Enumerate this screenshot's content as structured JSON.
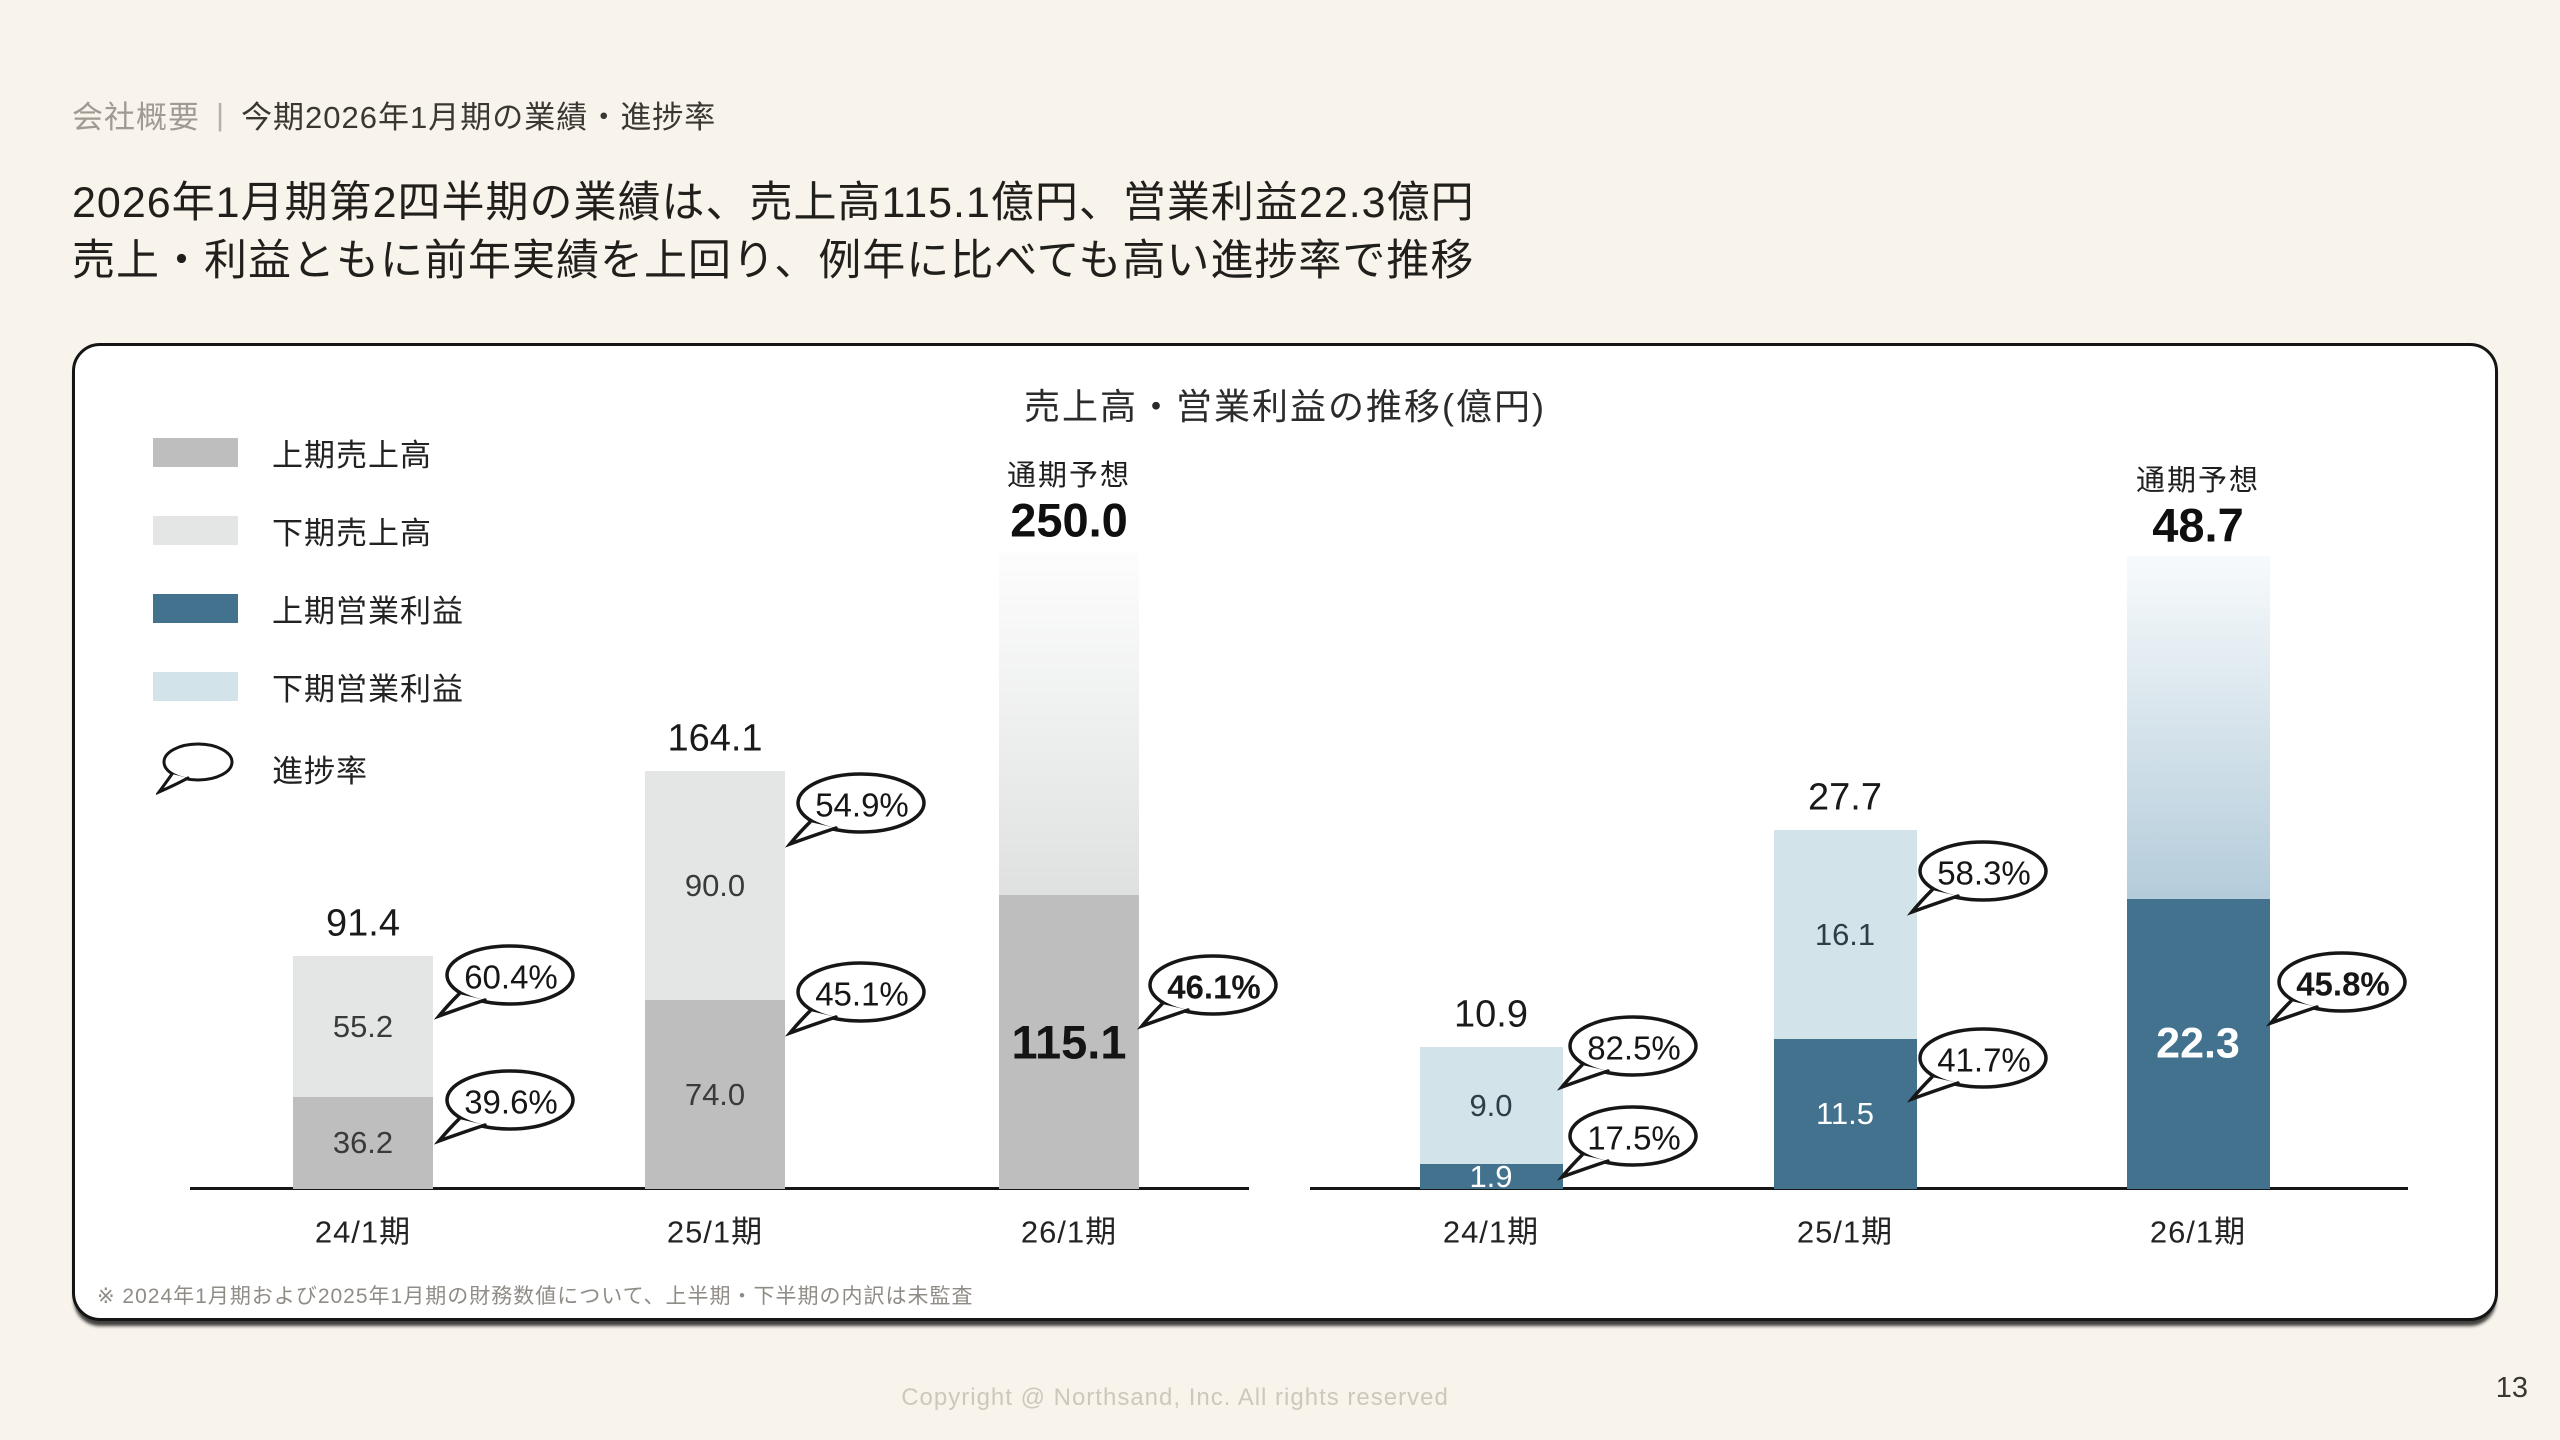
{
  "page": {
    "eyebrow": "会社概要",
    "eyebrow_separator": "|",
    "section_title": "今期2026年1月期の業績・進捗率",
    "headline_line1": "2026年1月期第2四半期の業績は、売上高115.1億円、営業利益22.3億円",
    "headline_line2": "売上・利益ともに前年実績を上回り、例年に比べても高い進捗率で推移",
    "copyright": "Copyright @ Northsand, Inc. All rights reserved",
    "page_number": "13"
  },
  "panel": {
    "chart_title": "売上高・営業利益の推移(億円)",
    "footnote": "※ 2024年1月期および2025年1月期の財務数値について、上半期・下半期の内訳は未監査",
    "legend": [
      {
        "key": "h1_revenue",
        "label": "上期売上高"
      },
      {
        "key": "h2_revenue",
        "label": "下期売上高"
      },
      {
        "key": "h1_profit",
        "label": "上期営業利益"
      },
      {
        "key": "h2_profit",
        "label": "下期営業利益"
      },
      {
        "key": "progress",
        "label": "進捗率"
      }
    ]
  },
  "colors": {
    "h1_revenue": "#bebebe",
    "h2_revenue": "#e4e5e5",
    "h1_profit": "#42728d",
    "h2_profit": "#d3e3ea",
    "forecast_revenue_top": "#fdfdfd",
    "forecast_revenue_bottom": "#dfe1e1",
    "forecast_profit_top": "#f7fafc",
    "forecast_profit_bottom": "#b4ccda",
    "background": "#f8f3eb",
    "panel_border": "#151515"
  },
  "chart_data": [
    {
      "name": "売上高",
      "type": "bar",
      "stacked": true,
      "unit": "億円",
      "categories": [
        "24/1期",
        "25/1期",
        "26/1期"
      ],
      "series": [
        {
          "name": "上期売上高",
          "values": [
            36.2,
            74.0,
            115.1
          ]
        },
        {
          "name": "下期売上高",
          "values": [
            55.2,
            90.0,
            null
          ]
        }
      ],
      "totals": [
        91.4,
        164.1,
        null
      ],
      "forecast": {
        "category": "26/1期",
        "label": "通期予想",
        "value": 250.0
      },
      "progress": [
        [
          "39.6%",
          "60.4%"
        ],
        [
          "45.1%",
          "54.9%"
        ],
        [
          "46.1%"
        ]
      ]
    },
    {
      "name": "営業利益",
      "type": "bar",
      "stacked": true,
      "unit": "億円",
      "categories": [
        "24/1期",
        "25/1期",
        "26/1期"
      ],
      "series": [
        {
          "name": "上期営業利益",
          "values": [
            1.9,
            11.5,
            22.3
          ]
        },
        {
          "name": "下期営業利益",
          "values": [
            9.0,
            16.1,
            null
          ]
        }
      ],
      "totals": [
        10.9,
        27.7,
        null
      ],
      "forecast": {
        "category": "26/1期",
        "label": "通期予想",
        "value": 48.7
      },
      "progress": [
        [
          "17.5%",
          "82.5%"
        ],
        [
          "41.7%",
          "58.3%"
        ],
        [
          "45.8%"
        ]
      ]
    }
  ]
}
